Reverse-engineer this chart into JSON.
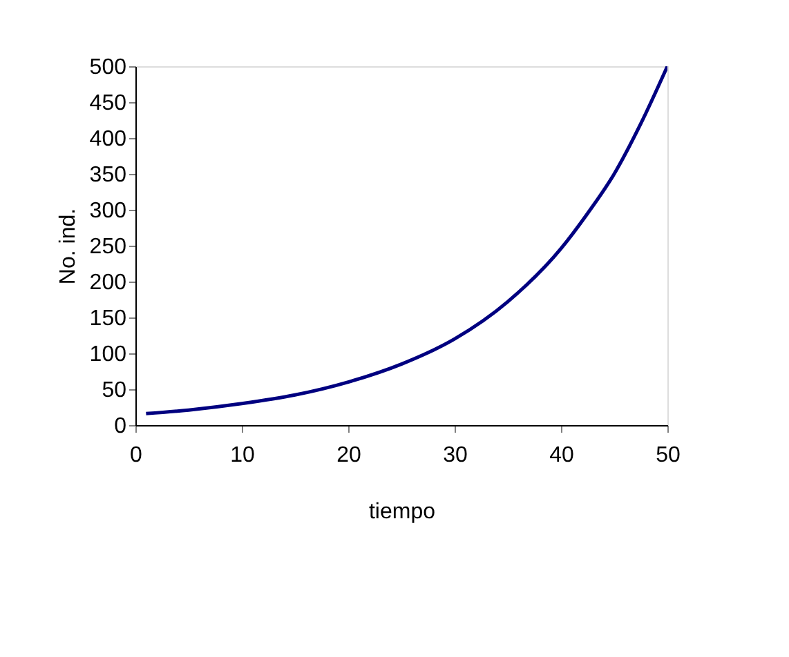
{
  "chart_data": {
    "type": "line",
    "xlabel": "tiempo",
    "ylabel": "No. ind.",
    "x": [
      1,
      5,
      10,
      15,
      20,
      25,
      30,
      35,
      40,
      42.5,
      45,
      47.5,
      50
    ],
    "series": [
      {
        "color": "#000080",
        "values": [
          16,
          21,
          30,
          42,
          60,
          85,
          120,
          172,
          246,
          295,
          350,
          420,
          500
        ]
      }
    ],
    "xlim": [
      0,
      50
    ],
    "xticks": [
      0,
      10,
      20,
      30,
      40,
      50
    ],
    "ylim": [
      0,
      500
    ],
    "yticks": [
      0,
      50,
      100,
      150,
      200,
      250,
      300,
      350,
      400,
      450,
      500
    ],
    "grid": false,
    "marker": "none",
    "line_style": "solid"
  }
}
